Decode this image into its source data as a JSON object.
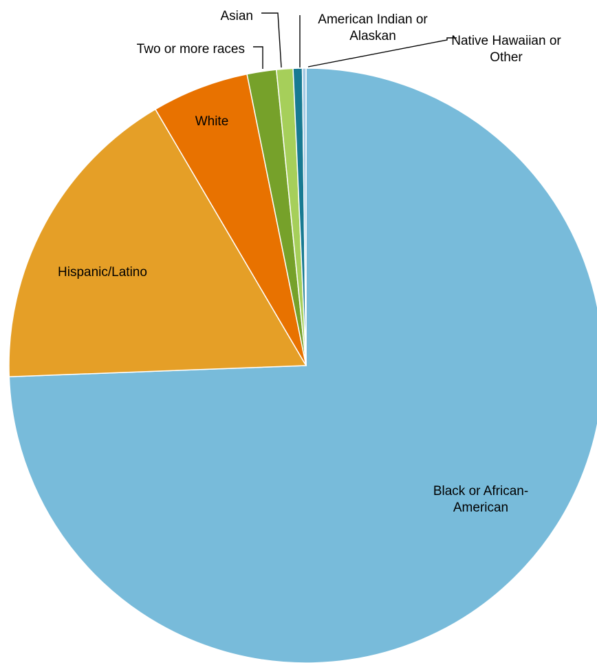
{
  "chart_data": {
    "type": "pie",
    "title": "",
    "legend": "none",
    "start_angle_deg": 0,
    "direction": "clockwise",
    "slices": [
      {
        "label_lines": [
          "Black or African-",
          "American"
        ],
        "value": 74.7,
        "color": "#78BBDA"
      },
      {
        "label_lines": [
          "Hispanic/Latino"
        ],
        "value": 17.2,
        "color": "#E59F27"
      },
      {
        "label_lines": [
          "White"
        ],
        "value": 5.3,
        "color": "#E87200"
      },
      {
        "label_lines": [
          "Two or more races"
        ],
        "value": 1.6,
        "color": "#76A12A"
      },
      {
        "label_lines": [
          "Asian"
        ],
        "value": 0.9,
        "color": "#A6CF5A"
      },
      {
        "label_lines": [
          "American Indian or",
          "Alaskan"
        ],
        "value": 0.5,
        "color": "#187A92"
      },
      {
        "label_lines": [
          "Native Hawaiian or",
          "Other"
        ],
        "value": 0.2,
        "color": "#A2C9E4"
      }
    ]
  }
}
